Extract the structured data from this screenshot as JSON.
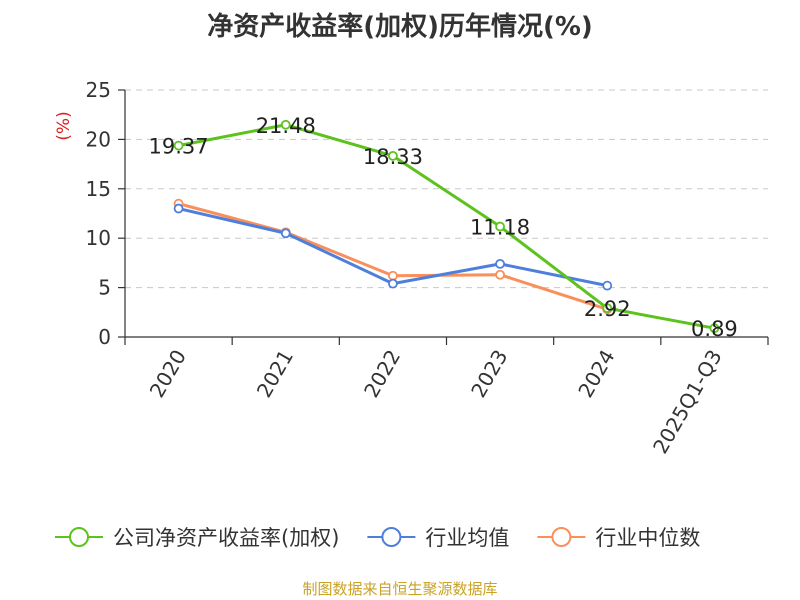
{
  "chart_data": {
    "type": "line",
    "title": "净资产收益率(加权)历年情况(%)",
    "ylabel": "(%)",
    "xlabel": "",
    "ylim": [
      0,
      25
    ],
    "yticks": [
      0,
      5,
      10,
      15,
      20,
      25
    ],
    "grid": true,
    "categories": [
      "2020",
      "2021",
      "2022",
      "2023",
      "2024",
      "2025Q1-Q3"
    ],
    "series": [
      {
        "name": "公司净资产收益率(加权)",
        "color": "#5cc21d",
        "values": [
          19.37,
          21.48,
          18.33,
          11.18,
          2.92,
          0.89
        ],
        "labels": [
          "19.37",
          "21.48",
          "18.33",
          "11.18",
          "2.92",
          "0.89"
        ]
      },
      {
        "name": "行业均值",
        "color": "#4f7fdc",
        "values": [
          13.0,
          10.5,
          5.4,
          7.4,
          5.2,
          null
        ]
      },
      {
        "name": "行业中位数",
        "color": "#f98f5b",
        "values": [
          13.5,
          10.6,
          6.2,
          6.3,
          2.8,
          null
        ]
      }
    ],
    "legend_position": "bottom"
  },
  "source": "制图数据来自恒生聚源数据库"
}
